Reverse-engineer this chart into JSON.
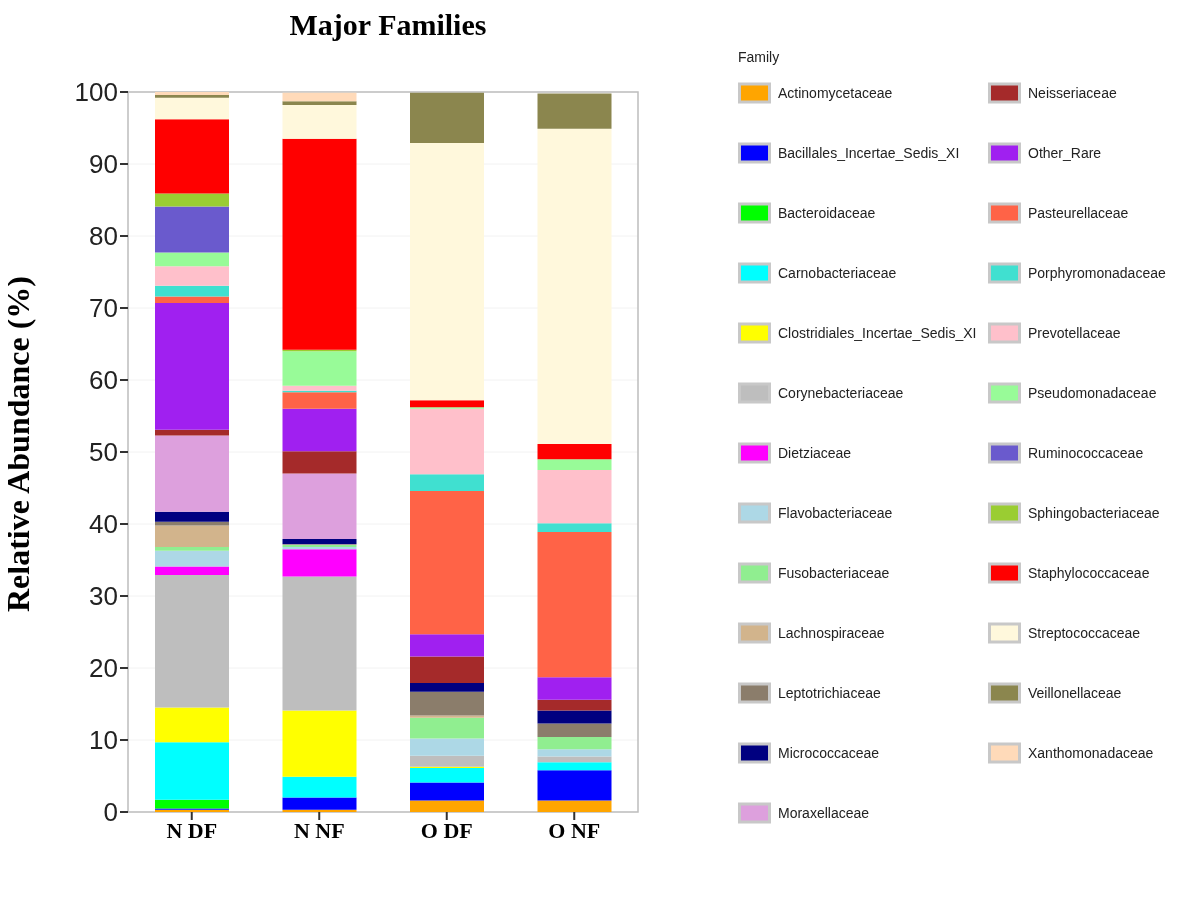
{
  "chart_data": {
    "type": "bar",
    "title": "Major Families",
    "ylabel": "Relative Abundance (%)",
    "legend_title": "Family",
    "categories": [
      "N DF",
      "N NF",
      "O DF",
      "O NF"
    ],
    "stacked": true,
    "ylim": [
      0,
      100
    ],
    "yticks": [
      0,
      10,
      20,
      30,
      40,
      50,
      60,
      70,
      80,
      90,
      100
    ],
    "grid": "y",
    "legend": "right",
    "series": [
      {
        "name": "Actinomycetaceae",
        "color": "#ffa500",
        "values": [
          0.3,
          0.3,
          1.6,
          1.6
        ]
      },
      {
        "name": "Bacillales_Incertae_Sedis_XI",
        "color": "#0000ff",
        "values": [
          0.2,
          1.7,
          2.5,
          4.2
        ]
      },
      {
        "name": "Bacteroidaceae",
        "color": "#00ff00",
        "values": [
          1.2,
          0,
          0,
          0
        ]
      },
      {
        "name": "Carnobacteriaceae",
        "color": "#00ffff",
        "values": [
          8.0,
          2.9,
          2.0,
          1.1
        ]
      },
      {
        "name": "Clostridiales_Incertae_Sedis_XI",
        "color": "#ffff00",
        "values": [
          4.8,
          9.2,
          0.2,
          0
        ]
      },
      {
        "name": "Corynebacteriaceae",
        "color": "#bebebe",
        "values": [
          18.4,
          18.6,
          1.5,
          0.8
        ]
      },
      {
        "name": "Dietziaceae",
        "color": "#ff00ff",
        "values": [
          1.2,
          3.8,
          0,
          0
        ]
      },
      {
        "name": "Flavobacteriaceae",
        "color": "#add8e6",
        "values": [
          2.2,
          0.3,
          2.4,
          1.0
        ]
      },
      {
        "name": "Fusobacteriaceae",
        "color": "#90ee90",
        "values": [
          0.5,
          0.3,
          2.9,
          1.7
        ]
      },
      {
        "name": "Lachnospiraceae",
        "color": "#d2b48c",
        "values": [
          3.0,
          0.1,
          0.3,
          0
        ]
      },
      {
        "name": "Leptotrichiaceae",
        "color": "#8b7d6b",
        "values": [
          0.5,
          0,
          3.3,
          1.9
        ]
      },
      {
        "name": "Micrococcaceae",
        "color": "#000080",
        "values": [
          1.4,
          0.7,
          1.2,
          1.8
        ]
      },
      {
        "name": "Moraxellaceae",
        "color": "#dda0dd",
        "values": [
          10.6,
          9.1,
          0,
          0
        ]
      },
      {
        "name": "Neisseriaceae",
        "color": "#a52a2a",
        "values": [
          0.8,
          3.1,
          3.7,
          1.5
        ]
      },
      {
        "name": "Other_Rare",
        "color": "#a020f0",
        "values": [
          17.6,
          5.9,
          3.1,
          3.1
        ]
      },
      {
        "name": "Pasteurellaceae",
        "color": "#ff6347",
        "values": [
          0.9,
          2.3,
          19.9,
          20.2
        ]
      },
      {
        "name": "Porphyromonadaceae",
        "color": "#40e0d0",
        "values": [
          1.5,
          0.2,
          2.3,
          1.2
        ]
      },
      {
        "name": "Prevotellaceae",
        "color": "#ffc0cb",
        "values": [
          2.7,
          0.7,
          9.1,
          7.4
        ]
      },
      {
        "name": "Pseudomonadaceae",
        "color": "#98fb98",
        "values": [
          1.9,
          4.8,
          0.2,
          1.5
        ]
      },
      {
        "name": "Ruminococcaceae",
        "color": "#6a5acd",
        "values": [
          6.4,
          0,
          0,
          0
        ]
      },
      {
        "name": "Sphingobacteriaceae",
        "color": "#9acd32",
        "values": [
          1.8,
          0.2,
          0,
          0
        ]
      },
      {
        "name": "Staphylococcaceae",
        "color": "#ff0000",
        "values": [
          10.3,
          29.3,
          1.0,
          2.1
        ]
      },
      {
        "name": "Streptococcaceae",
        "color": "#fff8dc",
        "values": [
          3.0,
          4.7,
          35.7,
          43.8
        ]
      },
      {
        "name": "Veillonellaceae",
        "color": "#8b864e",
        "values": [
          0.4,
          0.5,
          7.0,
          4.9
        ]
      },
      {
        "name": "Xanthomonadaceae",
        "color": "#ffdab9",
        "values": [
          0.5,
          1.2,
          null,
          null
        ]
      }
    ]
  }
}
